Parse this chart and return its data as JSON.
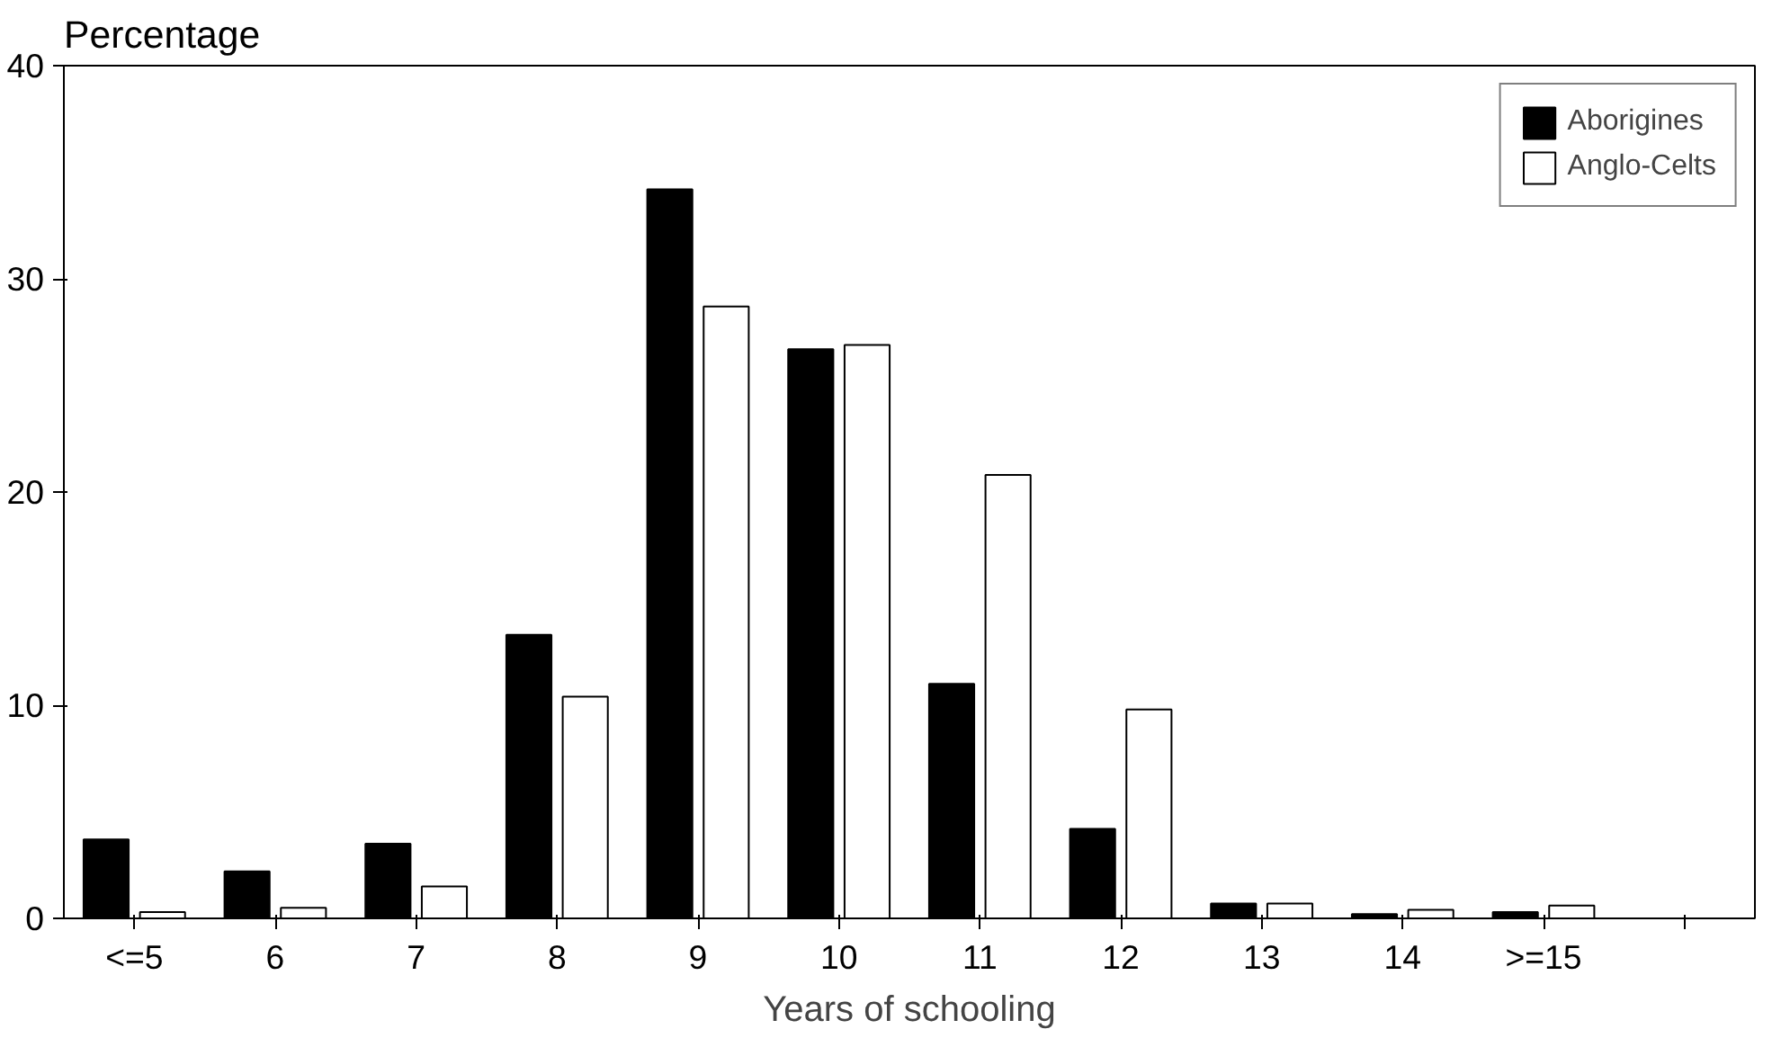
{
  "chart_data": {
    "type": "bar",
    "ylabel": "Percentage",
    "xlabel": "Years of schooling",
    "categories": [
      "<=5",
      "6",
      "7",
      "8",
      "9",
      "10",
      "11",
      "12",
      "13",
      "14",
      ">=15",
      null
    ],
    "series": [
      {
        "name": "Aborigines",
        "color": "#000000",
        "values": [
          3.7,
          2.2,
          3.5,
          13.3,
          34.2,
          26.7,
          11.0,
          4.2,
          0.7,
          0.2,
          0.3,
          null
        ]
      },
      {
        "name": "Anglo-Celts",
        "color": "#ffffff",
        "values": [
          0.3,
          0.5,
          1.5,
          10.4,
          28.7,
          26.9,
          20.8,
          9.8,
          0.7,
          0.4,
          0.6,
          null
        ]
      }
    ],
    "ylim": [
      0,
      40
    ],
    "yticks": [
      0,
      10,
      20,
      30,
      40
    ],
    "grid": false,
    "legend": "top right"
  }
}
